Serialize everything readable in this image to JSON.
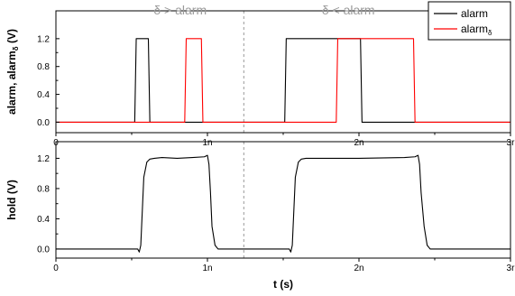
{
  "chart_data": [
    {
      "type": "line",
      "ylabel": "alarm, alarm",
      "ylabel_sub": "δ",
      "ylabel_unit": " (V)",
      "xlim": [
        0,
        3.0
      ],
      "ylim": [
        -0.15,
        1.6
      ],
      "x_ticks": [
        0,
        1.0,
        2.0,
        3.0
      ],
      "x_tick_labels": [
        "0",
        "1n",
        "2n",
        "3r"
      ],
      "y_ticks": [
        0.0,
        0.4,
        0.8,
        1.2
      ],
      "y_tick_labels": [
        "0.0",
        "0.4",
        "0.8",
        "1.2"
      ],
      "annotations": [
        {
          "text": "δ > alarm",
          "x": 0.82
        },
        {
          "text": "δ < alarm",
          "x": 1.93
        }
      ],
      "divider_x": 1.24,
      "legend_position": "top-right",
      "legend": [
        {
          "label": "alarm",
          "sub": "",
          "color": "#000000"
        },
        {
          "label": "alarm",
          "sub": "δ",
          "color": "#ff0000"
        }
      ],
      "series": [
        {
          "name": "alarm",
          "color": "#000000",
          "x": [
            0,
            0.52,
            0.53,
            0.61,
            0.62,
            1.51,
            1.52,
            2.01,
            2.02,
            3.0
          ],
          "y": [
            0,
            0,
            1.2,
            1.2,
            0,
            0,
            1.2,
            1.2,
            0,
            0
          ]
        },
        {
          "name": "alarm_δ",
          "color": "#ff0000",
          "x": [
            0,
            0.85,
            0.86,
            0.96,
            0.97,
            1.85,
            1.86,
            2.36,
            2.37,
            3.0
          ],
          "y": [
            0,
            0,
            1.2,
            1.2,
            0,
            0,
            1.2,
            1.2,
            0,
            0
          ]
        }
      ]
    },
    {
      "type": "line",
      "xlabel": "t (s)",
      "ylabel": "hold (V)",
      "xlim": [
        0,
        3.0
      ],
      "ylim": [
        -0.12,
        1.42
      ],
      "x_ticks": [
        0,
        1.0,
        2.0,
        3.0
      ],
      "x_tick_labels": [
        "0",
        "1n",
        "2n",
        "3r"
      ],
      "y_ticks": [
        0.0,
        0.4,
        0.8,
        1.2
      ],
      "y_tick_labels": [
        "0.0",
        "0.4",
        "0.8",
        "1.2"
      ],
      "divider_x": 1.24,
      "series": [
        {
          "name": "hold",
          "color": "#000000",
          "x": [
            0,
            0.54,
            0.55,
            0.56,
            0.57,
            0.58,
            0.6,
            0.62,
            0.65,
            0.7,
            0.8,
            0.9,
            0.98,
            1.0,
            1.01,
            1.02,
            1.03,
            1.05,
            1.07,
            1.1,
            1.2,
            1.5,
            1.54,
            1.55,
            1.56,
            1.57,
            1.58,
            1.6,
            1.62,
            1.65,
            1.7,
            2.0,
            2.3,
            2.37,
            2.39,
            2.4,
            2.41,
            2.43,
            2.45,
            2.47,
            2.5,
            2.6,
            3.0
          ],
          "y": [
            0,
            0,
            -0.04,
            0.05,
            0.5,
            0.95,
            1.15,
            1.19,
            1.2,
            1.21,
            1.2,
            1.21,
            1.22,
            1.24,
            1.12,
            0.75,
            0.3,
            0.05,
            0.0,
            0,
            0,
            0,
            0,
            -0.04,
            0.05,
            0.5,
            0.95,
            1.15,
            1.19,
            1.2,
            1.2,
            1.2,
            1.21,
            1.22,
            1.24,
            1.12,
            0.75,
            0.3,
            0.05,
            0.0,
            0,
            0,
            0
          ]
        }
      ]
    }
  ]
}
